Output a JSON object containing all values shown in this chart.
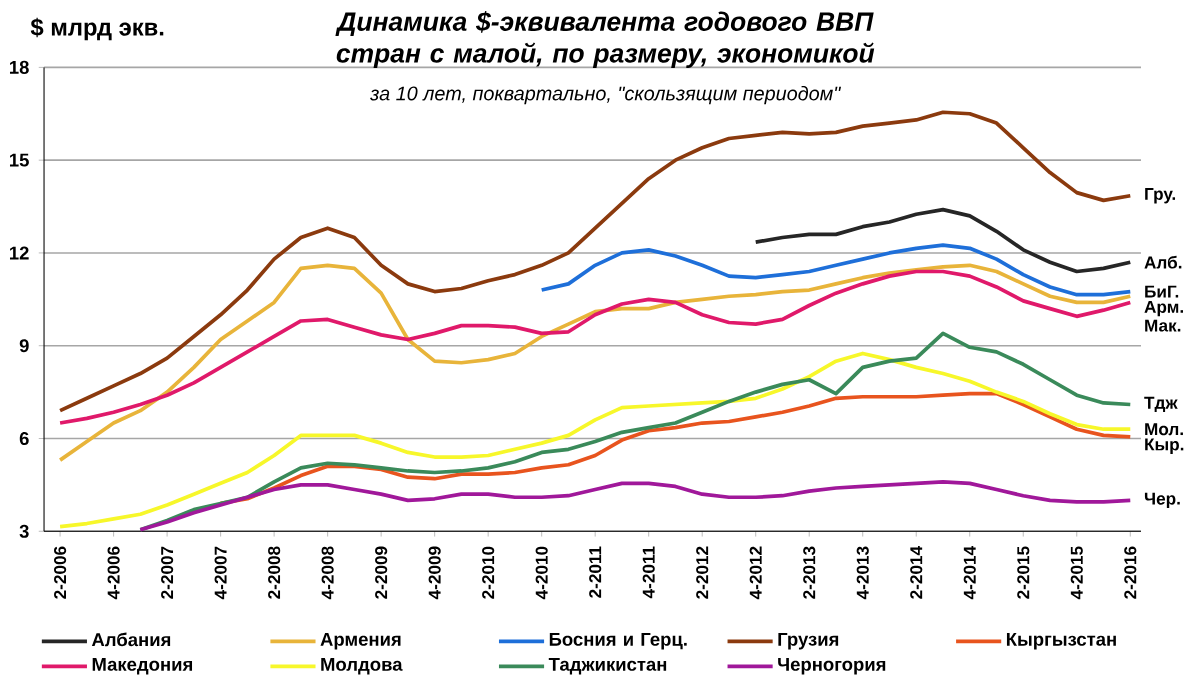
{
  "chart_data": {
    "type": "line",
    "title": "Динамика $-эквивалента  годового ВВП стран с малой, по размеру, экономикой",
    "subtitle": "за 10 лет, поквартально, \"скользящим периодом\"",
    "ylabel": "$ млрд экв.",
    "categories": [
      "2-2006",
      null,
      "4-2006",
      null,
      "2-2007",
      null,
      "4-2007",
      null,
      "2-2008",
      null,
      "4-2008",
      null,
      "2-2009",
      null,
      "4-2009",
      null,
      "2-2010",
      null,
      "4-2010",
      null,
      "2-2011",
      null,
      "4-2011",
      null,
      "2-2012",
      null,
      "4-2012",
      null,
      "2-2013",
      null,
      "4-2013",
      null,
      "2-2014",
      null,
      "4-2014",
      null,
      "2-2015",
      null,
      "4-2015",
      null,
      "2-2016"
    ],
    "ylim": [
      3,
      18
    ],
    "yticks": [
      3,
      6,
      9,
      12,
      15,
      18
    ],
    "grid": "y",
    "legend": "bottom",
    "series": [
      {
        "name": "Албания",
        "color": "#262626",
        "values": [
          null,
          null,
          null,
          null,
          null,
          null,
          null,
          null,
          null,
          null,
          null,
          null,
          null,
          null,
          null,
          null,
          null,
          null,
          null,
          null,
          null,
          null,
          null,
          null,
          null,
          null,
          12.35,
          12.5,
          12.6,
          12.6,
          12.85,
          13.0,
          13.25,
          13.4,
          13.2,
          12.7,
          12.1,
          11.7,
          11.4,
          11.5,
          11.7
        ]
      },
      {
        "name": "Армения",
        "color": "#e8b43a",
        "values": [
          5.3,
          5.9,
          6.5,
          6.9,
          7.5,
          8.3,
          9.2,
          9.8,
          10.4,
          11.5,
          11.6,
          11.5,
          10.7,
          9.2,
          8.5,
          8.45,
          8.55,
          8.75,
          9.3,
          9.7,
          10.1,
          10.2,
          10.2,
          10.4,
          10.5,
          10.6,
          10.65,
          10.75,
          10.8,
          11.0,
          11.2,
          11.35,
          11.45,
          11.55,
          11.6,
          11.4,
          11.0,
          10.6,
          10.4,
          10.4,
          10.6
        ]
      },
      {
        "name": "Босния  и  Герц.",
        "color": "#1e6fd9",
        "values": [
          null,
          null,
          null,
          null,
          null,
          null,
          null,
          null,
          null,
          null,
          null,
          null,
          null,
          null,
          null,
          null,
          null,
          null,
          10.8,
          11.0,
          11.6,
          12.0,
          12.1,
          11.9,
          11.6,
          11.25,
          11.2,
          11.3,
          11.4,
          11.6,
          11.8,
          12.0,
          12.15,
          12.25,
          12.15,
          11.8,
          11.3,
          10.9,
          10.65,
          10.65,
          10.75
        ]
      },
      {
        "name": "Грузия",
        "color": "#8b3a0e",
        "values": [
          6.9,
          7.3,
          7.7,
          8.1,
          8.6,
          9.3,
          10.0,
          10.8,
          11.8,
          12.5,
          12.8,
          12.5,
          11.6,
          11.0,
          10.75,
          10.85,
          11.1,
          11.3,
          11.6,
          12.0,
          12.8,
          13.6,
          14.4,
          15.0,
          15.4,
          15.7,
          15.8,
          15.9,
          15.85,
          15.9,
          16.1,
          16.2,
          16.3,
          16.55,
          16.5,
          16.2,
          15.4,
          14.6,
          13.95,
          13.7,
          13.85
        ]
      },
      {
        "name": "Кыргызстан",
        "color": "#e8541e",
        "values": [
          null,
          null,
          null,
          null,
          null,
          null,
          3.9,
          4.05,
          4.4,
          4.8,
          5.1,
          5.1,
          5.0,
          4.75,
          4.7,
          4.85,
          4.85,
          4.9,
          5.05,
          5.15,
          5.45,
          5.95,
          6.25,
          6.35,
          6.5,
          6.55,
          6.7,
          6.85,
          7.05,
          7.3,
          7.35,
          7.35,
          7.35,
          7.4,
          7.45,
          7.45,
          7.1,
          6.7,
          6.3,
          6.1,
          6.05
        ]
      },
      {
        "name": "Македония",
        "color": "#e0196a",
        "values": [
          6.5,
          6.65,
          6.85,
          7.1,
          7.4,
          7.8,
          8.3,
          8.8,
          9.3,
          9.8,
          9.85,
          9.6,
          9.35,
          9.2,
          9.4,
          9.65,
          9.65,
          9.6,
          9.4,
          9.45,
          10.0,
          10.35,
          10.5,
          10.4,
          10.0,
          9.75,
          9.7,
          9.85,
          10.3,
          10.7,
          11.0,
          11.25,
          11.4,
          11.4,
          11.25,
          10.9,
          10.45,
          10.2,
          9.95,
          10.15,
          10.4
        ]
      },
      {
        "name": "Молдова",
        "color": "#f7f72a",
        "values": [
          3.15,
          3.25,
          3.4,
          3.55,
          3.85,
          4.2,
          4.55,
          4.9,
          5.45,
          6.1,
          6.1,
          6.1,
          5.85,
          5.55,
          5.4,
          5.4,
          5.45,
          5.65,
          5.85,
          6.1,
          6.6,
          7.0,
          7.05,
          7.1,
          7.15,
          7.2,
          7.3,
          7.6,
          8.0,
          8.5,
          8.75,
          8.55,
          8.3,
          8.1,
          7.85,
          7.5,
          7.2,
          6.8,
          6.45,
          6.3,
          6.3
        ]
      },
      {
        "name": "Таджикистан",
        "color": "#3a8a5a",
        "values": [
          null,
          null,
          null,
          3.05,
          3.35,
          3.7,
          3.9,
          4.1,
          4.6,
          5.05,
          5.2,
          5.15,
          5.05,
          4.95,
          4.9,
          4.95,
          5.05,
          5.25,
          5.55,
          5.65,
          5.9,
          6.2,
          6.35,
          6.5,
          6.85,
          7.2,
          7.5,
          7.75,
          7.9,
          7.45,
          8.3,
          8.5,
          8.6,
          9.4,
          8.95,
          8.8,
          8.4,
          7.9,
          7.4,
          7.15,
          7.1
        ]
      },
      {
        "name": "Черногория",
        "color": "#a0189a",
        "values": [
          null,
          null,
          null,
          3.05,
          3.3,
          3.6,
          3.85,
          4.1,
          4.35,
          4.5,
          4.5,
          4.35,
          4.2,
          4.0,
          4.05,
          4.2,
          4.2,
          4.1,
          4.1,
          4.15,
          4.35,
          4.55,
          4.55,
          4.45,
          4.2,
          4.1,
          4.1,
          4.15,
          4.3,
          4.4,
          4.45,
          4.5,
          4.55,
          4.6,
          4.55,
          4.35,
          4.15,
          4.0,
          3.95,
          3.95,
          4.0
        ]
      }
    ],
    "annotations": [
      {
        "text": "Гру.",
        "x": "2-2016",
        "y": 13.85
      },
      {
        "text": "Алб.",
        "x": "2-2016",
        "y": 11.7
      },
      {
        "text": "БиГ.",
        "x": "2-2016",
        "y": 10.75
      },
      {
        "text": "Арм.",
        "x": "2-2016",
        "y": 10.6
      },
      {
        "text": "Мак.",
        "x": "2-2016",
        "y": 10.4
      },
      {
        "text": "Тдж",
        "x": "2-2016",
        "y": 7.1
      },
      {
        "text": "Мол.",
        "x": "2-2016",
        "y": 6.3
      },
      {
        "text": "Кыр.",
        "x": "2-2016",
        "y": 6.05
      },
      {
        "text": "Чер.",
        "x": "2-2016",
        "y": 4.0
      }
    ]
  }
}
